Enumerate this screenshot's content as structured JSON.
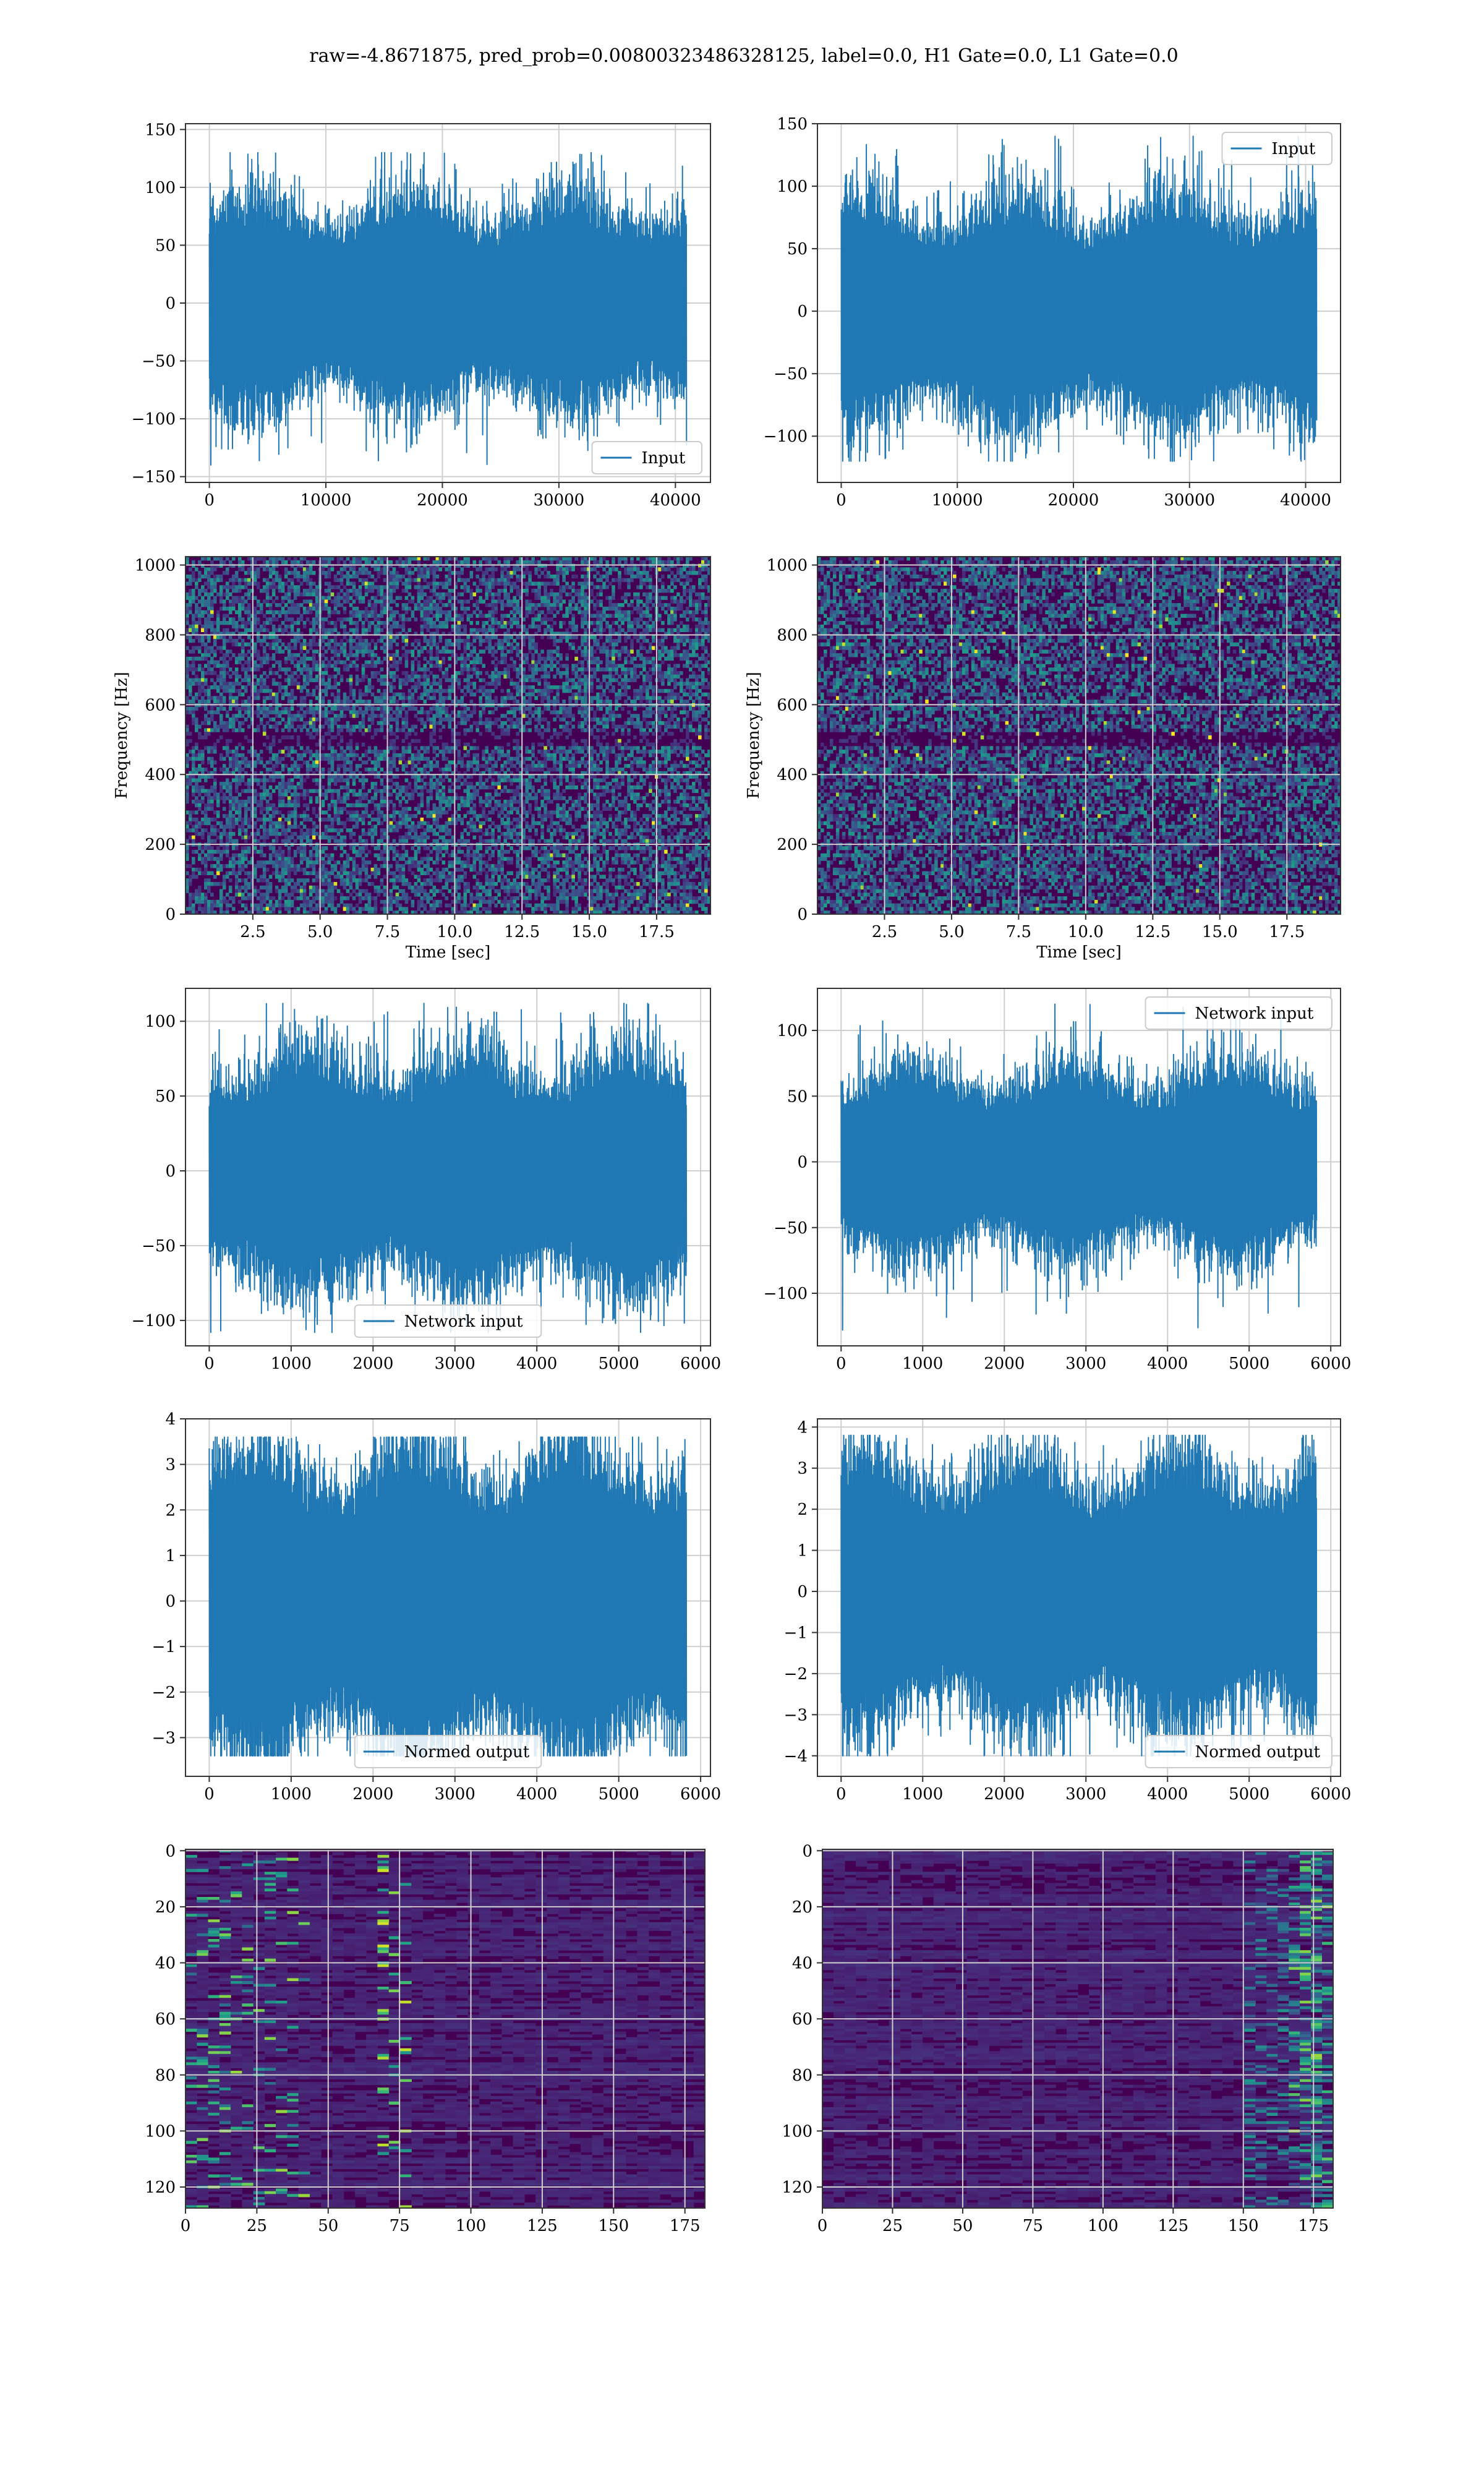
{
  "suptitle": "raw=-4.8671875, pred_prob=0.00800323486328125, label=0.0, H1 Gate=0.0, L1 Gate=0.0",
  "colors": {
    "line": "#1f77b4",
    "grid": "#cfcfcf",
    "axis": "#333333"
  },
  "chart_data": [
    {
      "id": "p1",
      "type": "line",
      "signal": "wave",
      "series": [
        {
          "name": "Input",
          "n": 40960,
          "amp": 25,
          "peak_max": 130,
          "peak_min": -140
        }
      ],
      "xlim": [
        -2048,
        43008
      ],
      "ylim": [
        -155,
        155
      ],
      "xticks": [
        {
          "v": 0,
          "t": "0"
        },
        {
          "v": 10000,
          "t": "10000"
        },
        {
          "v": 20000,
          "t": "20000"
        },
        {
          "v": 30000,
          "t": "30000"
        },
        {
          "v": 40000,
          "t": "40000"
        }
      ],
      "yticks": [
        {
          "v": -150,
          "t": "−150"
        },
        {
          "v": -100,
          "t": "−100"
        },
        {
          "v": -50,
          "t": "−50"
        },
        {
          "v": 0,
          "t": "0"
        },
        {
          "v": 50,
          "t": "50"
        },
        {
          "v": 100,
          "t": "100"
        },
        {
          "v": 150,
          "t": "150"
        }
      ],
      "legend": {
        "label": "Input",
        "loc": "lower right"
      },
      "grid": true
    },
    {
      "id": "p2",
      "type": "line",
      "signal": "wave",
      "series": [
        {
          "name": "Input",
          "n": 40960,
          "amp": 25,
          "peak_max": 140,
          "peak_min": -120
        }
      ],
      "xlim": [
        -2048,
        43008
      ],
      "ylim": [
        -137,
        150
      ],
      "xticks": [
        {
          "v": 0,
          "t": "0"
        },
        {
          "v": 10000,
          "t": "10000"
        },
        {
          "v": 20000,
          "t": "20000"
        },
        {
          "v": 30000,
          "t": "30000"
        },
        {
          "v": 40000,
          "t": "40000"
        }
      ],
      "yticks": [
        {
          "v": -100,
          "t": "−100"
        },
        {
          "v": -50,
          "t": "−50"
        },
        {
          "v": 0,
          "t": "0"
        },
        {
          "v": 50,
          "t": "50"
        },
        {
          "v": 100,
          "t": "100"
        },
        {
          "v": 150,
          "t": "150"
        }
      ],
      "legend": {
        "label": "Input",
        "loc": "upper right"
      },
      "grid": true
    },
    {
      "id": "p3",
      "type": "heatmap",
      "signal": "spectrogram",
      "xlim": [
        0,
        19.5
      ],
      "ylim": [
        0,
        1024
      ],
      "xlabel": "Time [sec]",
      "ylabel": "Frequency [Hz]",
      "xticks": [
        {
          "v": 2.5,
          "t": "2.5"
        },
        {
          "v": 5,
          "t": "5.0"
        },
        {
          "v": 7.5,
          "t": "7.5"
        },
        {
          "v": 10,
          "t": "10.0"
        },
        {
          "v": 12.5,
          "t": "12.5"
        },
        {
          "v": 15,
          "t": "15.0"
        },
        {
          "v": 17.5,
          "t": "17.5"
        }
      ],
      "yticks": [
        {
          "v": 0,
          "t": "0"
        },
        {
          "v": 200,
          "t": "200"
        },
        {
          "v": 400,
          "t": "400"
        },
        {
          "v": 600,
          "t": "600"
        },
        {
          "v": 800,
          "t": "800"
        },
        {
          "v": 1000,
          "t": "1000"
        }
      ],
      "grid": true
    },
    {
      "id": "p4",
      "type": "heatmap",
      "signal": "spectrogram",
      "xlim": [
        0,
        19.5
      ],
      "ylim": [
        0,
        1024
      ],
      "xlabel": "Time [sec]",
      "ylabel": "Frequency [Hz]",
      "xticks": [
        {
          "v": 2.5,
          "t": "2.5"
        },
        {
          "v": 5,
          "t": "5.0"
        },
        {
          "v": 7.5,
          "t": "7.5"
        },
        {
          "v": 10,
          "t": "10.0"
        },
        {
          "v": 12.5,
          "t": "12.5"
        },
        {
          "v": 15,
          "t": "15.0"
        },
        {
          "v": 17.5,
          "t": "17.5"
        }
      ],
      "yticks": [
        {
          "v": 0,
          "t": "0"
        },
        {
          "v": 200,
          "t": "200"
        },
        {
          "v": 400,
          "t": "400"
        },
        {
          "v": 600,
          "t": "600"
        },
        {
          "v": 800,
          "t": "800"
        },
        {
          "v": 1000,
          "t": "1000"
        }
      ],
      "grid": true
    },
    {
      "id": "p5",
      "type": "line",
      "signal": "wave",
      "series": [
        {
          "name": "Network input",
          "n": 5830,
          "amp": 22,
          "peak_max": 112,
          "peak_min": -108
        }
      ],
      "xlim": [
        -290,
        6120
      ],
      "ylim": [
        -117,
        122
      ],
      "xticks": [
        {
          "v": 0,
          "t": "0"
        },
        {
          "v": 1000,
          "t": "1000"
        },
        {
          "v": 2000,
          "t": "2000"
        },
        {
          "v": 3000,
          "t": "3000"
        },
        {
          "v": 4000,
          "t": "4000"
        },
        {
          "v": 5000,
          "t": "5000"
        },
        {
          "v": 6000,
          "t": "6000"
        }
      ],
      "yticks": [
        {
          "v": -100,
          "t": "−100"
        },
        {
          "v": -50,
          "t": "−50"
        },
        {
          "v": 0,
          "t": "0"
        },
        {
          "v": 50,
          "t": "50"
        },
        {
          "v": 100,
          "t": "100"
        }
      ],
      "legend": {
        "label": "Network input",
        "loc": "lower center"
      },
      "grid": true
    },
    {
      "id": "p6",
      "type": "line",
      "signal": "wave",
      "series": [
        {
          "name": "Network input",
          "n": 5830,
          "amp": 20,
          "peak_max": 120,
          "peak_min": -128
        }
      ],
      "xlim": [
        -290,
        6120
      ],
      "ylim": [
        -140,
        132
      ],
      "xticks": [
        {
          "v": 0,
          "t": "0"
        },
        {
          "v": 1000,
          "t": "1000"
        },
        {
          "v": 2000,
          "t": "2000"
        },
        {
          "v": 3000,
          "t": "3000"
        },
        {
          "v": 4000,
          "t": "4000"
        },
        {
          "v": 5000,
          "t": "5000"
        },
        {
          "v": 6000,
          "t": "6000"
        }
      ],
      "yticks": [
        {
          "v": -100,
          "t": "−100"
        },
        {
          "v": -50,
          "t": "−50"
        },
        {
          "v": 0,
          "t": "0"
        },
        {
          "v": 50,
          "t": "50"
        },
        {
          "v": 100,
          "t": "100"
        }
      ],
      "legend": {
        "label": "Network input",
        "loc": "upper right"
      },
      "grid": true
    },
    {
      "id": "p7",
      "type": "line",
      "signal": "wave",
      "series": [
        {
          "name": "Normed output",
          "n": 5830,
          "amp": 0.95,
          "peak_max": 3.6,
          "peak_min": -3.4
        }
      ],
      "xlim": [
        -290,
        6120
      ],
      "ylim": [
        -3.85,
        4.0
      ],
      "xticks": [
        {
          "v": 0,
          "t": "0"
        },
        {
          "v": 1000,
          "t": "1000"
        },
        {
          "v": 2000,
          "t": "2000"
        },
        {
          "v": 3000,
          "t": "3000"
        },
        {
          "v": 4000,
          "t": "4000"
        },
        {
          "v": 5000,
          "t": "5000"
        },
        {
          "v": 6000,
          "t": "6000"
        }
      ],
      "yticks": [
        {
          "v": -3,
          "t": "−3"
        },
        {
          "v": -2,
          "t": "−2"
        },
        {
          "v": -1,
          "t": "−1"
        },
        {
          "v": 0,
          "t": "0"
        },
        {
          "v": 1,
          "t": "1"
        },
        {
          "v": 2,
          "t": "2"
        },
        {
          "v": 3,
          "t": "3"
        },
        {
          "v": 4,
          "t": "4"
        }
      ],
      "legend": {
        "label": "Normed output",
        "loc": "lower center"
      },
      "grid": true
    },
    {
      "id": "p8",
      "type": "line",
      "signal": "wave",
      "series": [
        {
          "name": "Normed output",
          "n": 5830,
          "amp": 0.9,
          "peak_max": 3.8,
          "peak_min": -4.0
        }
      ],
      "xlim": [
        -290,
        6120
      ],
      "ylim": [
        -4.5,
        4.2
      ],
      "xticks": [
        {
          "v": 0,
          "t": "0"
        },
        {
          "v": 1000,
          "t": "1000"
        },
        {
          "v": 2000,
          "t": "2000"
        },
        {
          "v": 3000,
          "t": "3000"
        },
        {
          "v": 4000,
          "t": "4000"
        },
        {
          "v": 5000,
          "t": "5000"
        },
        {
          "v": 6000,
          "t": "6000"
        }
      ],
      "yticks": [
        {
          "v": -4,
          "t": "−4"
        },
        {
          "v": -3,
          "t": "−3"
        },
        {
          "v": -2,
          "t": "−2"
        },
        {
          "v": -1,
          "t": "−1"
        },
        {
          "v": 0,
          "t": "0"
        },
        {
          "v": 1,
          "t": "1"
        },
        {
          "v": 2,
          "t": "2"
        },
        {
          "v": 3,
          "t": "3"
        },
        {
          "v": 4,
          "t": "4"
        }
      ],
      "legend": {
        "label": "Normed output",
        "loc": "lower right"
      },
      "grid": true
    },
    {
      "id": "p9",
      "type": "heatmap",
      "signal": "features",
      "rows": 128,
      "cols": 182,
      "hot": "left",
      "xlim": [
        0,
        182
      ],
      "ylim": [
        127.5,
        -0.5
      ],
      "xticks": [
        {
          "v": 0,
          "t": "0"
        },
        {
          "v": 25,
          "t": "25"
        },
        {
          "v": 50,
          "t": "50"
        },
        {
          "v": 75,
          "t": "75"
        },
        {
          "v": 100,
          "t": "100"
        },
        {
          "v": 125,
          "t": "125"
        },
        {
          "v": 150,
          "t": "150"
        },
        {
          "v": 175,
          "t": "175"
        }
      ],
      "yticks": [
        {
          "v": 0,
          "t": "0"
        },
        {
          "v": 20,
          "t": "20"
        },
        {
          "v": 40,
          "t": "40"
        },
        {
          "v": 60,
          "t": "60"
        },
        {
          "v": 80,
          "t": "80"
        },
        {
          "v": 100,
          "t": "100"
        },
        {
          "v": 120,
          "t": "120"
        }
      ],
      "grid": true
    },
    {
      "id": "p10",
      "type": "heatmap",
      "signal": "features",
      "rows": 128,
      "cols": 182,
      "hot": "right",
      "xlim": [
        0,
        182
      ],
      "ylim": [
        127.5,
        -0.5
      ],
      "xticks": [
        {
          "v": 0,
          "t": "0"
        },
        {
          "v": 25,
          "t": "25"
        },
        {
          "v": 50,
          "t": "50"
        },
        {
          "v": 75,
          "t": "75"
        },
        {
          "v": 100,
          "t": "100"
        },
        {
          "v": 125,
          "t": "125"
        },
        {
          "v": 150,
          "t": "150"
        },
        {
          "v": 175,
          "t": "175"
        }
      ],
      "yticks": [
        {
          "v": 0,
          "t": "0"
        },
        {
          "v": 20,
          "t": "20"
        },
        {
          "v": 40,
          "t": "40"
        },
        {
          "v": 60,
          "t": "60"
        },
        {
          "v": 80,
          "t": "80"
        },
        {
          "v": 100,
          "t": "100"
        },
        {
          "v": 120,
          "t": "120"
        }
      ],
      "grid": true
    }
  ]
}
